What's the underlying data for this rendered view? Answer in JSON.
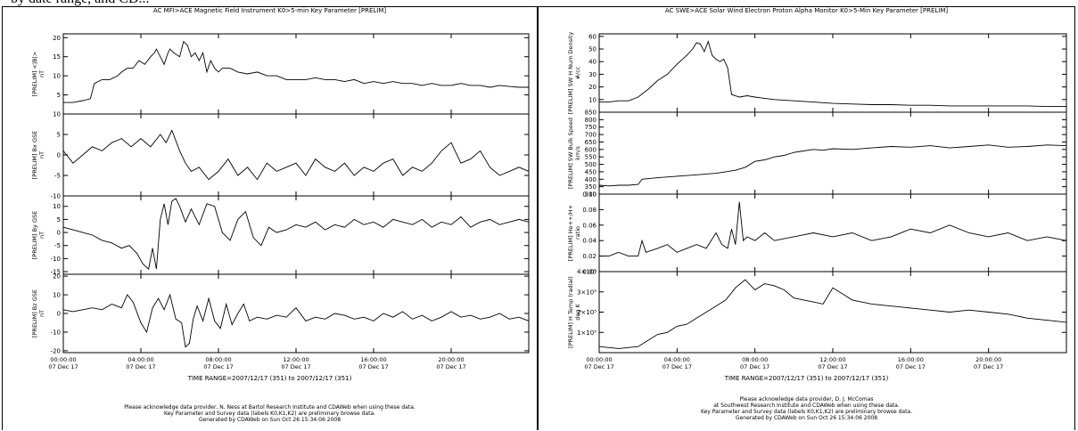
{
  "top_fragment": "by date range, and CD...",
  "figures": [
    {
      "title": "AC  MFI>ACE Magnetic Field Instrument  K0>5-min Key Parameter [PRELIM]",
      "time_range": "TIME RANGE=2007/12/17 (351) to 2007/12/17 (351)",
      "footer": [
        "Please acknowledge data provider, N. Ness at Bartol Research Institute and CDAWeb when using these data.",
        "Key Parameter and Survey data (labels K0,K1,K2) are preliminary browse data.",
        "Generated by CDAWeb on Sun Oct 26 15:34:06 2008"
      ]
    },
    {
      "title": "AC  SWE>ACE Solar Wind Electron Proton Alpha Monitor  K0>5-Min Key Parameter [PRELIM]",
      "time_range": "TIME RANGE=2007/12/17 (351) to 2007/12/17 (351)",
      "footer": [
        "Please acknowledge data provider, D. J. McComas",
        "at Southwest Research Institute and CDAWeb when using these data.",
        "Key Parameter and Survey data (labels K0,K1,K2) are preliminary browse data.",
        "Generated by CDAWeb on Sun Oct 26 15:34:06 2008"
      ]
    }
  ],
  "chart_data": [
    {
      "type": "line",
      "figure": 0,
      "ylabel": [
        "[PRELIM] <|B|>",
        "nT"
      ],
      "ylim": [
        0,
        21
      ],
      "yticks": [
        {
          "v": 5,
          "t": "5"
        },
        {
          "v": 10,
          "t": "10"
        },
        {
          "v": 15,
          "t": "15"
        },
        {
          "v": 20,
          "t": "20"
        }
      ],
      "xticks": [
        {
          "h": 0,
          "l1": "00:00:00",
          "l2": "07 Dec 17"
        },
        {
          "h": 4,
          "l1": "04:00:00",
          "l2": "07 Dec 17"
        },
        {
          "h": 8,
          "l1": "08:00:00",
          "l2": "07 Dec 17"
        },
        {
          "h": 12,
          "l1": "12:00:00",
          "l2": "07 Dec 17"
        },
        {
          "h": 16,
          "l1": "16:00:00",
          "l2": "07 Dec 17"
        },
        {
          "h": 20,
          "l1": "20:00:00",
          "l2": "07 Dec 17"
        }
      ],
      "x": [
        0,
        0.5,
        1,
        1.4,
        1.6,
        2,
        2.4,
        2.8,
        3,
        3.3,
        3.6,
        3.9,
        4.2,
        4.5,
        4.7,
        4.8,
        5,
        5.2,
        5.4,
        5.5,
        5.7,
        6,
        6.2,
        6.4,
        6.6,
        6.8,
        7,
        7.2,
        7.4,
        7.6,
        7.8,
        8,
        8.2,
        8.6,
        9,
        9.5,
        10,
        10.5,
        11,
        11.5,
        12,
        12.5,
        13,
        13.5,
        14,
        14.5,
        15,
        15.5,
        16,
        16.5,
        17,
        17.5,
        18,
        18.5,
        19,
        19.5,
        20,
        20.5,
        21,
        21.5,
        22,
        22.5,
        23,
        23.5,
        24
      ],
      "y": [
        3,
        3,
        3.5,
        4,
        8,
        9,
        9,
        10,
        11,
        12,
        12,
        14,
        13,
        15,
        16,
        17,
        15,
        13,
        16,
        17,
        16,
        15,
        19,
        18,
        15,
        16,
        14,
        16,
        11,
        14,
        12,
        11,
        12,
        12,
        11,
        10.5,
        11,
        10,
        10,
        9,
        9,
        9,
        9.5,
        9,
        9,
        8.5,
        9,
        8,
        8.5,
        8,
        8.5,
        8,
        8,
        7.5,
        8,
        7.5,
        7.5,
        8,
        7.5,
        7.5,
        7,
        7.5,
        7.2,
        7,
        7
      ]
    },
    {
      "type": "line",
      "figure": 0,
      "ylabel": [
        "[PRELIM] Bx GSE",
        "nT"
      ],
      "ylim": [
        -10,
        10
      ],
      "yticks": [
        {
          "v": -10,
          "t": "-10"
        },
        {
          "v": -5,
          "t": "-5"
        },
        {
          "v": 0,
          "t": "0"
        },
        {
          "v": 5,
          "t": "5"
        },
        {
          "v": 10,
          "t": "10"
        }
      ],
      "x": [
        0,
        0.5,
        1,
        1.5,
        2,
        2.5,
        3,
        3.5,
        4,
        4.5,
        5,
        5.3,
        5.6,
        6,
        6.3,
        6.6,
        7,
        7.5,
        8,
        8.5,
        9,
        9.5,
        10,
        10.5,
        11,
        11.5,
        12,
        12.5,
        13,
        13.5,
        14,
        14.5,
        15,
        15.5,
        16,
        16.5,
        17,
        17.5,
        18,
        18.5,
        19,
        19.5,
        20,
        20.5,
        21,
        21.5,
        22,
        22.5,
        23,
        23.5,
        24
      ],
      "y": [
        1,
        -2,
        0,
        2,
        1,
        3,
        4,
        2,
        4,
        2,
        5,
        3,
        6,
        1,
        -2,
        -4,
        -3,
        -6,
        -4,
        -1,
        -5,
        -3,
        -6,
        -2,
        -4,
        -3,
        -2,
        -5,
        -1,
        -3,
        -4,
        -2,
        -5,
        -3,
        -4,
        -2,
        -1,
        -5,
        -3,
        -4,
        -2,
        1,
        3,
        -2,
        -1,
        1,
        -3,
        -5,
        -4,
        -3,
        -4
      ]
    },
    {
      "type": "line",
      "figure": 0,
      "ylabel": [
        "[PRELIM] By GSE",
        "nT"
      ],
      "ylim": [
        -16,
        14
      ],
      "yticks": [
        {
          "v": -15,
          "t": "-15"
        },
        {
          "v": -10,
          "t": "-10"
        },
        {
          "v": -5,
          "t": "-5"
        },
        {
          "v": 0,
          "t": "0"
        },
        {
          "v": 5,
          "t": "5"
        },
        {
          "v": 10,
          "t": "10"
        }
      ],
      "x": [
        0,
        0.5,
        1,
        1.5,
        2,
        2.5,
        3,
        3.4,
        3.8,
        4.1,
        4.4,
        4.6,
        4.8,
        5,
        5.2,
        5.4,
        5.6,
        5.8,
        6,
        6.3,
        6.6,
        7,
        7.4,
        7.8,
        8.2,
        8.6,
        9,
        9.4,
        9.8,
        10.2,
        10.6,
        11,
        11.5,
        12,
        12.5,
        13,
        13.5,
        14,
        14.5,
        15,
        15.5,
        16,
        16.5,
        17,
        17.5,
        18,
        18.5,
        19,
        19.5,
        20,
        20.5,
        21,
        21.5,
        22,
        22.5,
        23,
        23.5,
        24
      ],
      "y": [
        2,
        1,
        0,
        -1,
        -3,
        -4,
        -6,
        -5,
        -8,
        -12,
        -14,
        -6,
        -14,
        5,
        11,
        3,
        12,
        13,
        10,
        4,
        9,
        3,
        11,
        10,
        0,
        -3,
        5,
        8,
        -2,
        -5,
        2,
        0,
        1,
        3,
        2,
        4,
        1,
        3,
        2,
        5,
        3,
        4,
        2,
        5,
        4,
        3,
        5,
        2,
        4,
        3,
        6,
        2,
        4,
        5,
        3,
        4,
        5,
        4
      ]
    },
    {
      "type": "line",
      "figure": 0,
      "ylabel": [
        "[PRELIM] Bz GSE",
        "nT"
      ],
      "ylim": [
        -21,
        21
      ],
      "yticks": [
        {
          "v": -20,
          "t": "-20"
        },
        {
          "v": -10,
          "t": "-10"
        },
        {
          "v": 0,
          "t": "0"
        },
        {
          "v": 10,
          "t": "10"
        },
        {
          "v": 20,
          "t": "20"
        }
      ],
      "x": [
        0,
        0.5,
        1,
        1.5,
        2,
        2.5,
        3,
        3.3,
        3.6,
        4,
        4.3,
        4.6,
        4.9,
        5.2,
        5.5,
        5.8,
        6.1,
        6.3,
        6.5,
        6.7,
        6.9,
        7.2,
        7.5,
        7.8,
        8.1,
        8.4,
        8.7,
        9,
        9.3,
        9.6,
        10,
        10.5,
        11,
        11.5,
        12,
        12.5,
        13,
        13.5,
        14,
        14.5,
        15,
        15.5,
        16,
        16.5,
        17,
        17.5,
        18,
        18.5,
        19,
        19.5,
        20,
        20.5,
        21,
        21.5,
        22,
        22.5,
        23,
        23.5,
        24
      ],
      "y": [
        2,
        1,
        2,
        3,
        2,
        5,
        3,
        10,
        6,
        -5,
        -10,
        3,
        8,
        2,
        10,
        -3,
        -5,
        -18,
        -16,
        -3,
        4,
        -4,
        8,
        -4,
        -8,
        5,
        -6,
        0,
        5,
        -4,
        -2,
        -3,
        -1,
        -2,
        3,
        -4,
        -2,
        -3,
        0,
        -1,
        -3,
        -2,
        -4,
        0,
        -2,
        1,
        -3,
        -1,
        -4,
        -2,
        1,
        -2,
        -1,
        -3,
        -2,
        0,
        -3,
        -2,
        -4
      ]
    },
    {
      "type": "line",
      "figure": 1,
      "ylabel": [
        "[PRELIM] SW H Num Density",
        "#/cc"
      ],
      "ylim": [
        0,
        62
      ],
      "yticks": [
        {
          "v": 10,
          "t": "10"
        },
        {
          "v": 20,
          "t": "20"
        },
        {
          "v": 30,
          "t": "30"
        },
        {
          "v": 40,
          "t": "40"
        },
        {
          "v": 50,
          "t": "50"
        },
        {
          "v": 60,
          "t": "60"
        }
      ],
      "xticks": [
        {
          "h": 0,
          "l1": "00:00:00",
          "l2": "07 Dec 17"
        },
        {
          "h": 4,
          "l1": "04:00:00",
          "l2": "07 Dec 17"
        },
        {
          "h": 8,
          "l1": "08:00:00",
          "l2": "07 Dec 17"
        },
        {
          "h": 12,
          "l1": "12:00:00",
          "l2": "07 Dec 17"
        },
        {
          "h": 16,
          "l1": "16:00:00",
          "l2": "07 Dec 17"
        },
        {
          "h": 20,
          "l1": "20:00:00",
          "l2": "07 Dec 17"
        }
      ],
      "x": [
        0,
        0.5,
        1,
        1.5,
        2,
        2.5,
        3,
        3.5,
        4,
        4.5,
        4.8,
        5,
        5.2,
        5.4,
        5.6,
        5.8,
        6,
        6.2,
        6.4,
        6.6,
        6.8,
        7.2,
        7.6,
        8,
        8.5,
        9,
        10,
        11,
        12,
        13,
        14,
        15,
        16,
        17,
        18,
        19,
        20,
        21,
        22,
        23,
        24
      ],
      "y": [
        8,
        8,
        9,
        9,
        12,
        18,
        25,
        30,
        38,
        45,
        50,
        55,
        54,
        48,
        56,
        45,
        42,
        40,
        42,
        35,
        14,
        12,
        13,
        12,
        11,
        10,
        9,
        8,
        7,
        6.5,
        6,
        6,
        5.5,
        5.5,
        5,
        5,
        5,
        5,
        5,
        4.5,
        4.5
      ]
    },
    {
      "type": "line",
      "figure": 1,
      "ylabel": [
        "[PRELIM] SW Bulk Speed",
        "km/s"
      ],
      "ylim": [
        300,
        850
      ],
      "yticks": [
        {
          "v": 300,
          "t": "300"
        },
        {
          "v": 350,
          "t": "350"
        },
        {
          "v": 400,
          "t": "400"
        },
        {
          "v": 450,
          "t": "450"
        },
        {
          "v": 500,
          "t": "500"
        },
        {
          "v": 550,
          "t": "550"
        },
        {
          "v": 600,
          "t": "600"
        },
        {
          "v": 650,
          "t": "650"
        },
        {
          "v": 700,
          "t": "700"
        },
        {
          "v": 750,
          "t": "750"
        },
        {
          "v": 800,
          "t": "800"
        },
        {
          "v": 850,
          "t": "850"
        }
      ],
      "x": [
        0,
        0.5,
        1,
        1.5,
        2,
        2.2,
        3,
        4,
        5,
        6,
        6.5,
        7,
        7.5,
        8,
        8.5,
        9,
        9.5,
        10,
        10.5,
        11,
        11.5,
        12,
        13,
        14,
        15,
        16,
        17,
        18,
        19,
        20,
        21,
        22,
        23,
        24
      ],
      "y": [
        360,
        355,
        360,
        360,
        365,
        400,
        410,
        420,
        430,
        440,
        450,
        460,
        480,
        520,
        530,
        550,
        560,
        580,
        590,
        600,
        595,
        605,
        600,
        610,
        620,
        615,
        625,
        610,
        620,
        630,
        615,
        620,
        630,
        625
      ]
    },
    {
      "type": "line",
      "figure": 1,
      "ylabel": [
        "[PRELIM] He++/H+",
        "ratio"
      ],
      "ylim": [
        0,
        0.1
      ],
      "yticks": [
        {
          "v": 0,
          "t": "0.00"
        },
        {
          "v": 0.02,
          "t": "0.02"
        },
        {
          "v": 0.04,
          "t": "0.04"
        },
        {
          "v": 0.06,
          "t": "0.06"
        },
        {
          "v": 0.08,
          "t": "0.08"
        },
        {
          "v": 0.1,
          "t": "0.10"
        }
      ],
      "x": [
        0,
        0.5,
        1,
        1.5,
        2,
        2.2,
        2.4,
        3,
        3.5,
        4,
        4.5,
        5,
        5.5,
        6,
        6.3,
        6.6,
        6.8,
        7,
        7.2,
        7.4,
        7.6,
        8,
        8.5,
        9,
        10,
        11,
        12,
        13,
        14,
        15,
        16,
        17,
        18,
        19,
        20,
        21,
        22,
        23,
        24
      ],
      "y": [
        0.02,
        0.02,
        0.025,
        0.02,
        0.02,
        0.04,
        0.025,
        0.03,
        0.035,
        0.025,
        0.03,
        0.035,
        0.03,
        0.05,
        0.035,
        0.03,
        0.055,
        0.035,
        0.09,
        0.04,
        0.045,
        0.04,
        0.05,
        0.04,
        0.045,
        0.05,
        0.045,
        0.05,
        0.04,
        0.045,
        0.055,
        0.05,
        0.06,
        0.05,
        0.045,
        0.05,
        0.04,
        0.045,
        0.04
      ]
    },
    {
      "type": "line",
      "figure": 1,
      "ylabel": [
        "[PRELIM] H Temp (radial)",
        "deg K"
      ],
      "ylim": [
        0,
        400000
      ],
      "yticks": [
        {
          "v": 100000,
          "t": "1×10⁵"
        },
        {
          "v": 200000,
          "t": "2×10⁵"
        },
        {
          "v": 300000,
          "t": "3×10⁵"
        },
        {
          "v": 400000,
          "t": "4×10⁵"
        }
      ],
      "x": [
        0,
        1,
        2,
        2.5,
        3,
        3.5,
        4,
        4.5,
        5,
        5.5,
        6,
        6.5,
        7,
        7.5,
        8,
        8.5,
        9,
        9.5,
        10,
        10.5,
        11,
        11.5,
        12,
        12.5,
        13,
        14,
        15,
        16,
        17,
        18,
        19,
        20,
        21,
        22,
        23,
        24
      ],
      "y": [
        30000,
        20000,
        30000,
        60000,
        90000,
        100000,
        130000,
        140000,
        170000,
        200000,
        230000,
        260000,
        320000,
        360000,
        310000,
        340000,
        330000,
        310000,
        270000,
        260000,
        250000,
        240000,
        320000,
        290000,
        260000,
        240000,
        230000,
        220000,
        210000,
        200000,
        210000,
        200000,
        190000,
        170000,
        160000,
        150000
      ]
    }
  ]
}
